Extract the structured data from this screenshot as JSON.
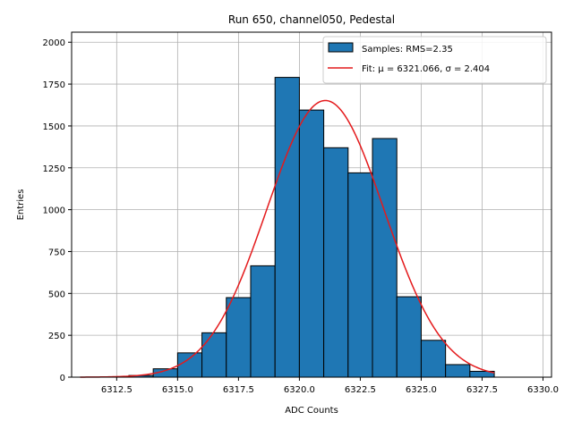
{
  "chart_data": {
    "type": "bar",
    "title": "Run 650, channel050, Pedestal",
    "xlabel": "ADC Counts",
    "ylabel": "Entries",
    "xlim": [
      6310.65,
      6330.35
    ],
    "ylim": [
      0,
      2060
    ],
    "grid": true,
    "legend_position": "top-right",
    "colors": {
      "bars": "#1f77b4",
      "bar_edge": "#000000",
      "fit": "#e41a1c"
    },
    "x_ticks": [
      "6312.5",
      "6315.0",
      "6317.5",
      "6320.0",
      "6322.5",
      "6325.0",
      "6327.5",
      "6330.0"
    ],
    "x_tick_values": [
      6312.5,
      6315.0,
      6317.5,
      6320.0,
      6322.5,
      6325.0,
      6327.5,
      6330.0
    ],
    "y_ticks": [
      "0",
      "250",
      "500",
      "750",
      "1000",
      "1250",
      "1500",
      "1750",
      "2000"
    ],
    "y_tick_values": [
      0,
      250,
      500,
      750,
      1000,
      1250,
      1500,
      1750,
      2000
    ],
    "bins": [
      {
        "x0": 6313.0,
        "x1": 6314.0,
        "count": 10
      },
      {
        "x0": 6314.0,
        "x1": 6315.0,
        "count": 50
      },
      {
        "x0": 6315.0,
        "x1": 6316.0,
        "count": 145
      },
      {
        "x0": 6316.0,
        "x1": 6317.0,
        "count": 265
      },
      {
        "x0": 6317.0,
        "x1": 6318.0,
        "count": 475
      },
      {
        "x0": 6318.0,
        "x1": 6319.0,
        "count": 665
      },
      {
        "x0": 6319.0,
        "x1": 6320.0,
        "count": 1790
      },
      {
        "x0": 6320.0,
        "x1": 6321.0,
        "count": 1595
      },
      {
        "x0": 6321.0,
        "x1": 6322.0,
        "count": 1370
      },
      {
        "x0": 6322.0,
        "x1": 6323.0,
        "count": 1220
      },
      {
        "x0": 6323.0,
        "x1": 6324.0,
        "count": 1425
      },
      {
        "x0": 6324.0,
        "x1": 6325.0,
        "count": 480
      },
      {
        "x0": 6325.0,
        "x1": 6326.0,
        "count": 220
      },
      {
        "x0": 6326.0,
        "x1": 6327.0,
        "count": 75
      },
      {
        "x0": 6327.0,
        "x1": 6328.0,
        "count": 35
      }
    ],
    "series": [
      {
        "name": "Samples: RMS=2.35",
        "type": "histogram"
      },
      {
        "name": "Fit: μ = 6321.066, σ = 2.404",
        "type": "gaussian",
        "mu": 6321.066,
        "sigma": 2.404,
        "amplitude": 1652,
        "x_range": [
          6311.0,
          6328.0
        ]
      }
    ]
  }
}
